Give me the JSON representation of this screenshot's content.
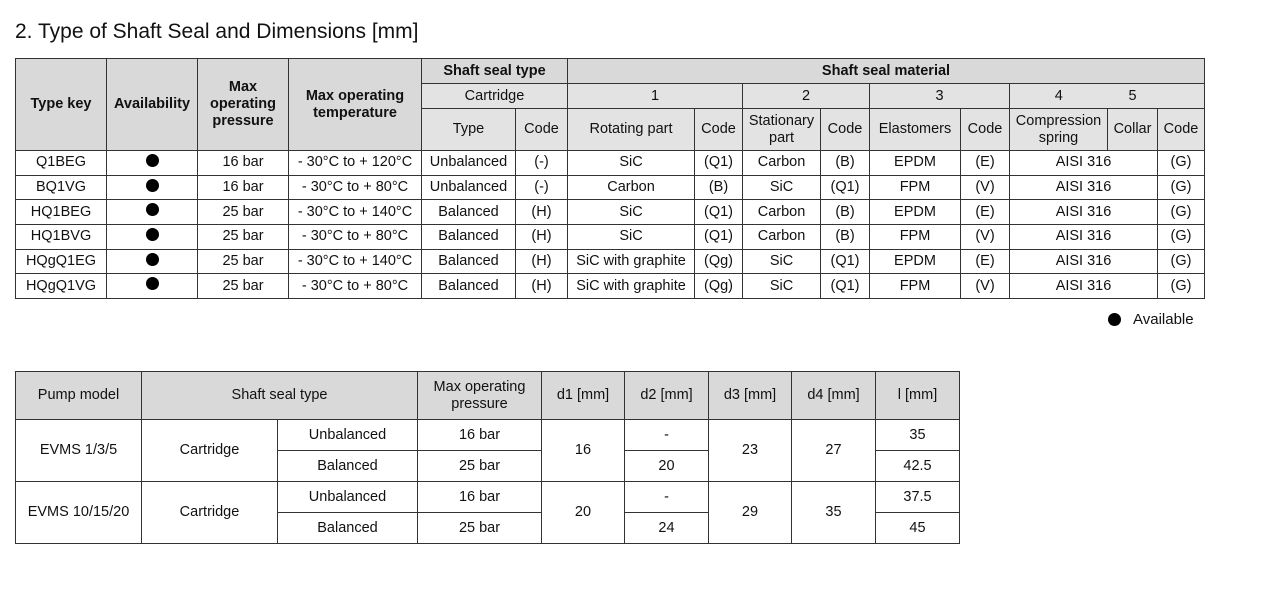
{
  "title": "2.   Type of Shaft Seal and Dimensions [mm]",
  "t1": {
    "h": {
      "type_key": "Type key",
      "availability": "Availability",
      "pressure": "Max operating pressure",
      "temperature": "Max operating temperature",
      "seal_type": "Shaft seal type",
      "seal_material": "Shaft seal material",
      "cartridge": "Cartridge",
      "n1": "1",
      "n2": "2",
      "n3": "3",
      "n4": "4",
      "n5": "5",
      "type": "Type",
      "code": "Code",
      "rotating": "Rotating part",
      "stationary": "Stationary part",
      "elastomers": "Elastomers",
      "spring": "Compression spring",
      "collar": "Collar"
    },
    "rows": [
      {
        "key": "Q1BEG",
        "p": "16 bar",
        "t": "- 30°C to + 120°C",
        "type": "Unbalanced",
        "tc": "(-)",
        "rot": "SiC",
        "rc": "(Q1)",
        "st": "Carbon",
        "sc": "(B)",
        "el": "EPDM",
        "ec": "(E)",
        "sp": "AISI 316",
        "spc": "(G)"
      },
      {
        "key": "BQ1VG",
        "p": "16 bar",
        "t": "- 30°C to + 80°C",
        "type": "Unbalanced",
        "tc": "(-)",
        "rot": "Carbon",
        "rc": "(B)",
        "st": "SiC",
        "sc": "(Q1)",
        "el": "FPM",
        "ec": "(V)",
        "sp": "AISI 316",
        "spc": "(G)"
      },
      {
        "key": "HQ1BEG",
        "p": "25 bar",
        "t": "- 30°C to + 140°C",
        "type": "Balanced",
        "tc": "(H)",
        "rot": "SiC",
        "rc": "(Q1)",
        "st": "Carbon",
        "sc": "(B)",
        "el": "EPDM",
        "ec": "(E)",
        "sp": "AISI 316",
        "spc": "(G)"
      },
      {
        "key": "HQ1BVG",
        "p": "25 bar",
        "t": "- 30°C to + 80°C",
        "type": "Balanced",
        "tc": "(H)",
        "rot": "SiC",
        "rc": "(Q1)",
        "st": "Carbon",
        "sc": "(B)",
        "el": "FPM",
        "ec": "(V)",
        "sp": "AISI 316",
        "spc": "(G)"
      },
      {
        "key": "HQgQ1EG",
        "p": "25 bar",
        "t": "- 30°C to + 140°C",
        "type": "Balanced",
        "tc": "(H)",
        "rot": "SiC with graphite",
        "rc": "(Qg)",
        "st": "SiC",
        "sc": "(Q1)",
        "el": "EPDM",
        "ec": "(E)",
        "sp": "AISI 316",
        "spc": "(G)"
      },
      {
        "key": "HQgQ1VG",
        "p": "25 bar",
        "t": "- 30°C to + 80°C",
        "type": "Balanced",
        "tc": "(H)",
        "rot": "SiC with graphite",
        "rc": "(Qg)",
        "st": "SiC",
        "sc": "(Q1)",
        "el": "FPM",
        "ec": "(V)",
        "sp": "AISI 316",
        "spc": "(G)"
      }
    ]
  },
  "legend": "Available",
  "t2": {
    "h": {
      "model": "Pump model",
      "seal": "Shaft seal type",
      "pressure": "Max operating pressure",
      "d1": "d1 [mm]",
      "d2": "d2 [mm]",
      "d3": "d3 [mm]",
      "d4": "d4 [mm]",
      "l": "l [mm]"
    },
    "groups": [
      {
        "model": "EVMS 1/3/5",
        "seal": "Cartridge",
        "d1": "16",
        "d3": "23",
        "d4": "27",
        "rows": [
          {
            "type": "Unbalanced",
            "p": "16 bar",
            "d2": "-",
            "l": "35"
          },
          {
            "type": "Balanced",
            "p": "25 bar",
            "d2": "20",
            "l": "42.5"
          }
        ]
      },
      {
        "model": "EVMS 10/15/20",
        "seal": "Cartridge",
        "d1": "20",
        "d3": "29",
        "d4": "35",
        "rows": [
          {
            "type": "Unbalanced",
            "p": "16 bar",
            "d2": "-",
            "l": "37.5"
          },
          {
            "type": "Balanced",
            "p": "25 bar",
            "d2": "24",
            "l": "45"
          }
        ]
      }
    ]
  }
}
